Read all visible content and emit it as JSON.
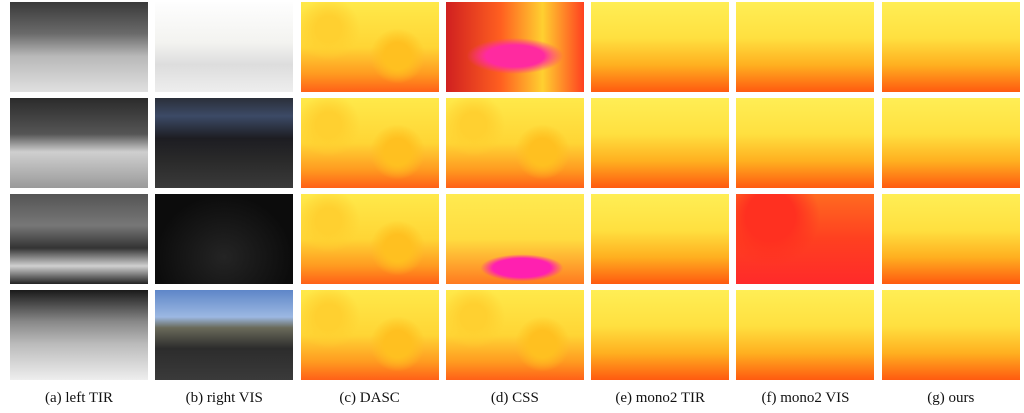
{
  "captions": [
    "(a) left TIR",
    "(b) right VIS",
    "(c) DASC",
    "(d) CSS",
    "(e) mono2 TIR",
    "(f) mono2 VIS",
    "(g) ours"
  ]
}
